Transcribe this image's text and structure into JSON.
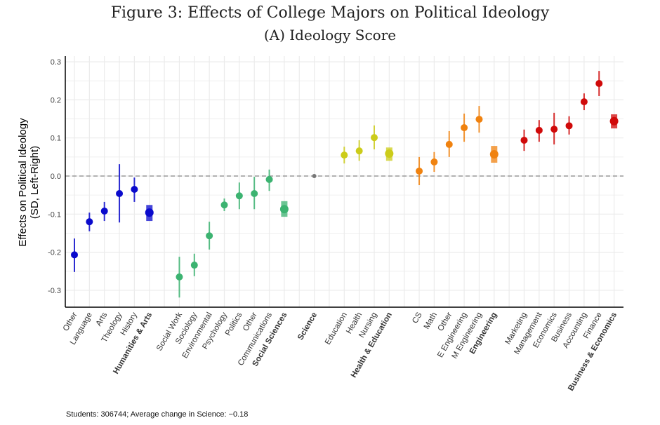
{
  "chart_data": {
    "type": "scatter",
    "title": "Figure 3: Effects of College Majors on Political Ideology",
    "subtitle": "(A) Ideology Score",
    "xlabel": "",
    "ylabel": [
      "Effects on Political Ideology",
      "(SD, Left-Right)"
    ],
    "ylim": [
      -0.34,
      0.3
    ],
    "yticks": [
      0.3,
      0.2,
      0.1,
      0.0,
      -0.1,
      -0.2,
      -0.3
    ],
    "ytick_labels": [
      "0.3",
      "0.2",
      "0.1",
      "0.0",
      "-0.1",
      "-0.2",
      "-0.3"
    ],
    "grid": true,
    "reference_line": 0,
    "groups": [
      {
        "name": "Humanities & Arts",
        "color": "#0a0acc",
        "items": [
          {
            "label": "Other",
            "value": -0.207,
            "lo": -0.252,
            "hi": -0.164
          },
          {
            "label": "Language",
            "value": -0.12,
            "lo": -0.145,
            "hi": -0.096
          },
          {
            "label": "Arts",
            "value": -0.092,
            "lo": -0.118,
            "hi": -0.068
          },
          {
            "label": "Theology",
            "value": -0.046,
            "lo": -0.122,
            "hi": 0.031
          },
          {
            "label": "History",
            "value": -0.035,
            "lo": -0.068,
            "hi": -0.004
          },
          {
            "label": "Humanities & Arts",
            "value": -0.096,
            "lo": -0.118,
            "hi": -0.076,
            "aggregate": true
          }
        ]
      },
      {
        "name": "Social Sciences",
        "color": "#3cb371",
        "items": [
          {
            "label": "Social Work",
            "value": -0.265,
            "lo": -0.319,
            "hi": -0.212
          },
          {
            "label": "Sociology",
            "value": -0.234,
            "lo": -0.263,
            "hi": -0.204
          },
          {
            "label": "Environmental",
            "value": -0.157,
            "lo": -0.193,
            "hi": -0.12
          },
          {
            "label": "Psychology",
            "value": -0.076,
            "lo": -0.092,
            "hi": -0.059
          },
          {
            "label": "Politics",
            "value": -0.052,
            "lo": -0.087,
            "hi": -0.017
          },
          {
            "label": "Other",
            "value": -0.046,
            "lo": -0.087,
            "hi": -0.002
          },
          {
            "label": "Communications",
            "value": -0.009,
            "lo": -0.039,
            "hi": 0.017
          },
          {
            "label": "Social Sciences",
            "value": -0.087,
            "lo": -0.107,
            "hi": -0.066,
            "aggregate": true
          }
        ]
      },
      {
        "name": "Science",
        "color": "#777777",
        "items": [
          {
            "label": "Science",
            "value": 0,
            "lo": 0,
            "hi": 0,
            "aggregate": true,
            "reference": true
          }
        ]
      },
      {
        "name": "Health & Education",
        "color": "#cccc1a",
        "items": [
          {
            "label": "Education",
            "value": 0.055,
            "lo": 0.033,
            "hi": 0.077
          },
          {
            "label": "Health",
            "value": 0.066,
            "lo": 0.04,
            "hi": 0.094
          },
          {
            "label": "Nursing",
            "value": 0.101,
            "lo": 0.07,
            "hi": 0.133
          },
          {
            "label": "Health & Education",
            "value": 0.059,
            "lo": 0.04,
            "hi": 0.075,
            "aggregate": true
          }
        ]
      },
      {
        "name": "Engineering",
        "color": "#f0820f",
        "items": [
          {
            "label": "CS",
            "value": 0.013,
            "lo": -0.024,
            "hi": 0.05
          },
          {
            "label": "Math",
            "value": 0.037,
            "lo": 0.011,
            "hi": 0.063
          },
          {
            "label": "Other",
            "value": 0.083,
            "lo": 0.05,
            "hi": 0.118
          },
          {
            "label": "E Engineering",
            "value": 0.127,
            "lo": 0.09,
            "hi": 0.164
          },
          {
            "label": "M Engineering",
            "value": 0.149,
            "lo": 0.114,
            "hi": 0.184
          },
          {
            "label": "Engineering",
            "value": 0.057,
            "lo": 0.035,
            "hi": 0.079,
            "aggregate": true
          }
        ]
      },
      {
        "name": "Business & Economics",
        "color": "#d00a0a",
        "items": [
          {
            "label": "Marketing",
            "value": 0.094,
            "lo": 0.066,
            "hi": 0.122
          },
          {
            "label": "Management",
            "value": 0.12,
            "lo": 0.09,
            "hi": 0.147
          },
          {
            "label": "Economics",
            "value": 0.123,
            "lo": 0.083,
            "hi": 0.166
          },
          {
            "label": "Business",
            "value": 0.132,
            "lo": 0.109,
            "hi": 0.157
          },
          {
            "label": "Accounting",
            "value": 0.195,
            "lo": 0.173,
            "hi": 0.217
          },
          {
            "label": "Finance",
            "value": 0.243,
            "lo": 0.21,
            "hi": 0.276
          },
          {
            "label": "Business & Economics",
            "value": 0.144,
            "lo": 0.125,
            "hi": 0.162,
            "aggregate": true
          }
        ]
      }
    ],
    "note": "Students: 306744; Average change in Science: −0.18"
  }
}
